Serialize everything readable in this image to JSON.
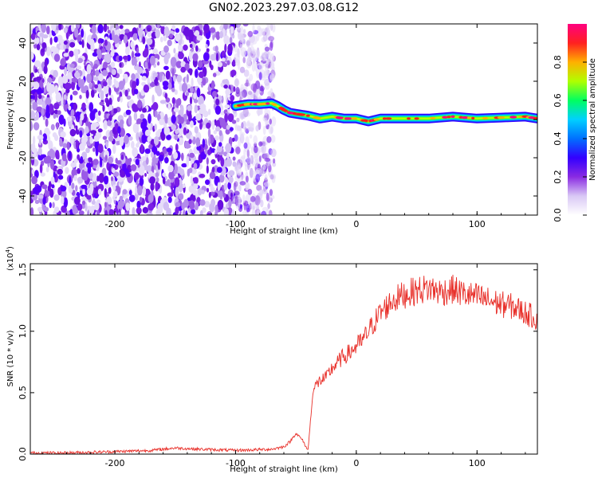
{
  "title": "GN02.2023.297.03.08.G12",
  "chart_data": [
    {
      "type": "heatmap",
      "xlabel": "Height of straight line (km)",
      "ylabel": "Frequency (Hz)",
      "xlim": [
        -270,
        150
      ],
      "ylim": [
        -50,
        50
      ],
      "xticks": [
        -200,
        -100,
        0,
        100
      ],
      "yticks": [
        -40,
        -20,
        0,
        20,
        40
      ],
      "colorbar": {
        "label": "Normalized spectral amplitude",
        "range": [
          0,
          1
        ],
        "ticks": [
          "0.0",
          "0.2",
          "0.4",
          "0.6",
          "0.8"
        ],
        "colors": [
          "#ffffff",
          "#d9c8f5",
          "#8a2be2",
          "#3300ff",
          "#0070ff",
          "#00d0ff",
          "#00ff60",
          "#b0ff00",
          "#ffb000",
          "#ff2020",
          "#ff0080"
        ]
      },
      "signal_track": {
        "x": [
          -100,
          -90,
          -80,
          -70,
          -65,
          -60,
          -55,
          -50,
          -40,
          -30,
          -20,
          -10,
          0,
          10,
          20,
          40,
          60,
          80,
          100,
          120,
          140,
          150
        ],
        "freq": [
          7,
          8,
          8,
          8.5,
          7,
          5,
          3.5,
          3,
          2,
          0.5,
          1.5,
          0.5,
          0.5,
          -1,
          0.5,
          0.5,
          0.5,
          1.5,
          0.5,
          1,
          1.5,
          0.5
        ]
      },
      "noise_region": [
        -270,
        -68
      ]
    },
    {
      "type": "line",
      "xlabel": "Height of straight line (km)",
      "ylabel": "SNR (10 * v/v)",
      "scale_label": "(x10",
      "scale_exp": "4",
      "xlim": [
        -270,
        150
      ],
      "ylim": [
        0,
        1.55
      ],
      "xticks": [
        -200,
        -100,
        0,
        100
      ],
      "yticks": [
        "0.0",
        "0.5",
        "1.0",
        "1.5"
      ],
      "color": "#e8302a",
      "series": [
        {
          "x": [
            -270,
            -240,
            -200,
            -170,
            -150,
            -130,
            -100,
            -70,
            -60,
            -55,
            -50,
            -45,
            -40,
            -36,
            -34,
            -30,
            -25,
            -20,
            -15,
            -10,
            -5,
            0,
            5,
            10,
            20,
            30,
            40,
            50,
            60,
            70,
            80,
            90,
            100,
            110,
            120,
            130,
            140,
            150
          ],
          "y": [
            0.01,
            0.01,
            0.02,
            0.03,
            0.05,
            0.04,
            0.03,
            0.04,
            0.06,
            0.1,
            0.17,
            0.12,
            0.03,
            0.5,
            0.55,
            0.6,
            0.62,
            0.7,
            0.75,
            0.8,
            0.83,
            0.88,
            0.92,
            1.0,
            1.15,
            1.25,
            1.3,
            1.33,
            1.35,
            1.32,
            1.34,
            1.3,
            1.28,
            1.25,
            1.22,
            1.2,
            1.15,
            1.1
          ]
        }
      ]
    }
  ]
}
